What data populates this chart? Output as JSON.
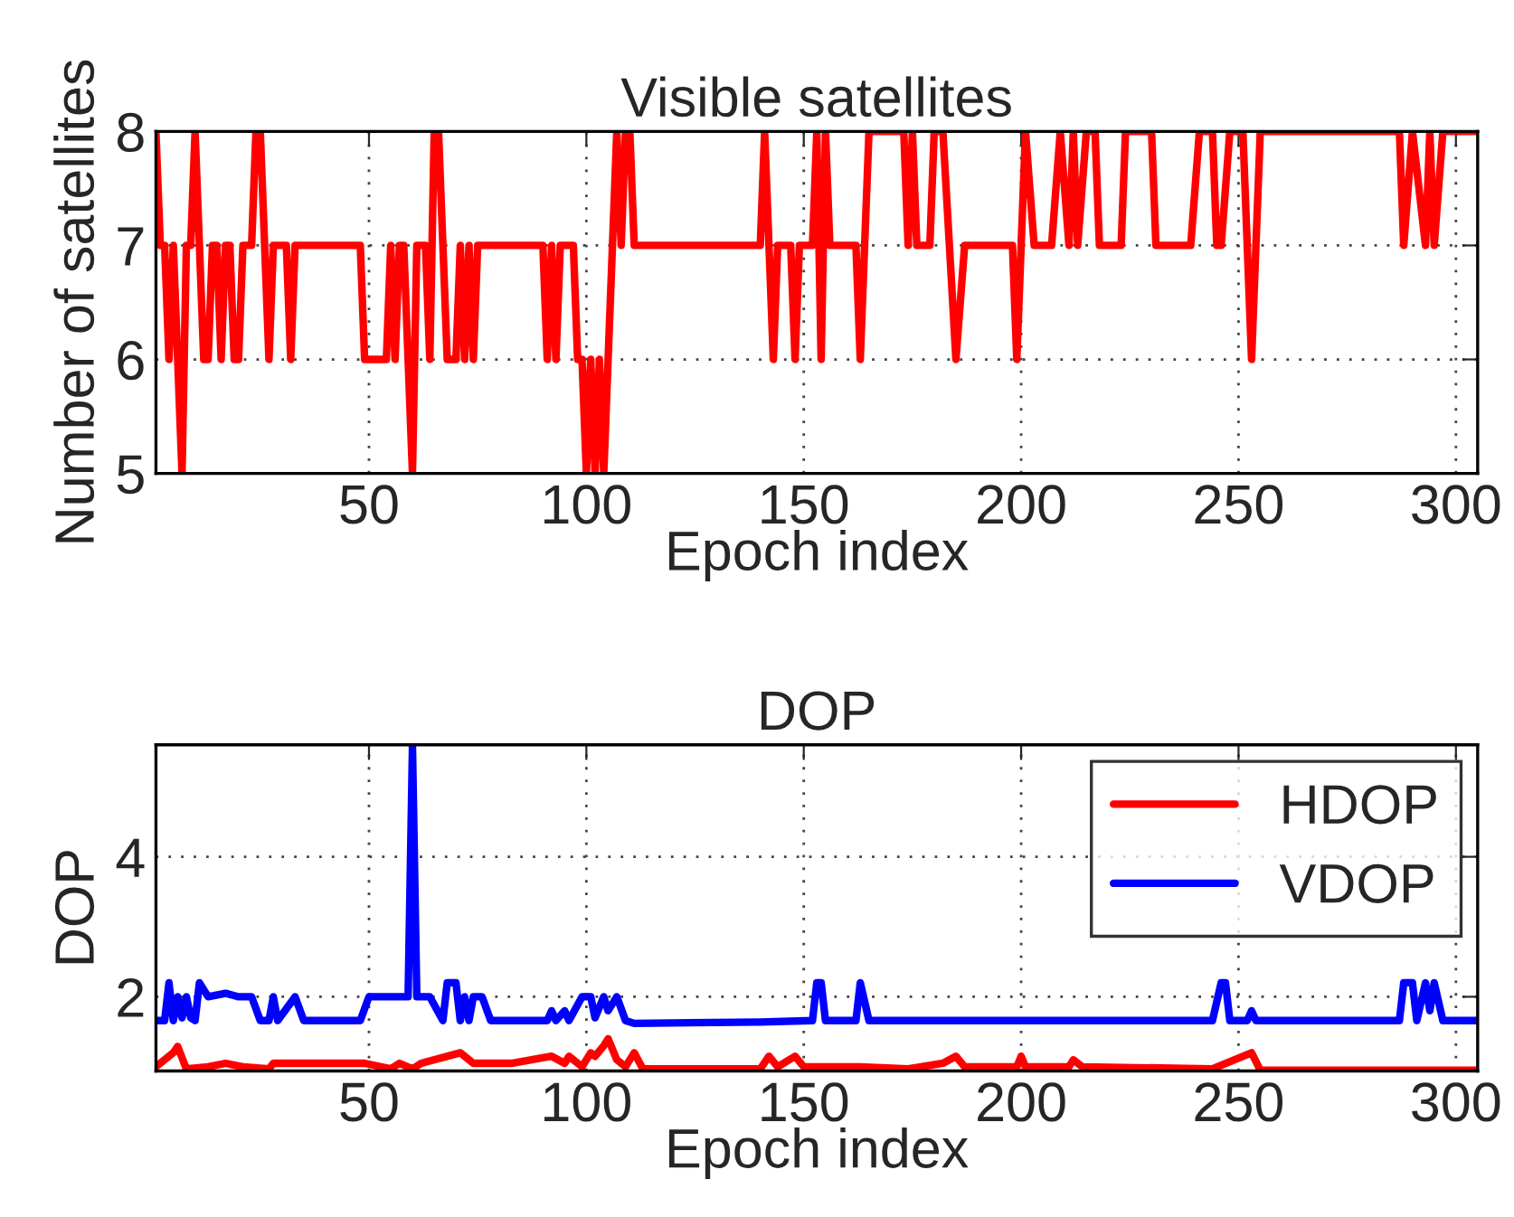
{
  "chart_data": [
    {
      "type": "line",
      "title": "Visible satellites",
      "xlabel": "Epoch index",
      "ylabel": "Number of satellites",
      "xlim": [
        1,
        305
      ],
      "xticks": [
        50,
        100,
        150,
        200,
        250,
        300
      ],
      "ylim": [
        5,
        8
      ],
      "yticks": [
        5,
        6,
        7,
        8
      ],
      "grid": true,
      "legend": false,
      "line_style": "solid",
      "series": [
        {
          "color": "#ff0000",
          "x": [
            1,
            2,
            3,
            4,
            5,
            7,
            8,
            9,
            10,
            11,
            12,
            13,
            14,
            15,
            16,
            17,
            18,
            19,
            20,
            21,
            22,
            23,
            24,
            25,
            26,
            27,
            28,
            30,
            31,
            32,
            33,
            48,
            49,
            54,
            55,
            56,
            57,
            58,
            60,
            61,
            63,
            64,
            65,
            66,
            67,
            68,
            70,
            71,
            72,
            73,
            74,
            75,
            90,
            91,
            92,
            93,
            94,
            97,
            98,
            99,
            100,
            101,
            102,
            103,
            104,
            105,
            106,
            107,
            108,
            109,
            110,
            111,
            140,
            141,
            142,
            143,
            144,
            147,
            148,
            149,
            152,
            153,
            154,
            155,
            156,
            162,
            163,
            165,
            173,
            174,
            175,
            176,
            179,
            180,
            182,
            185,
            187,
            198,
            199,
            201,
            203,
            207,
            209,
            211,
            212,
            213,
            215,
            217,
            218,
            223,
            224,
            230,
            231,
            239,
            241,
            244,
            245,
            246,
            248,
            251,
            253,
            255,
            287,
            288,
            290,
            293,
            294,
            295,
            297,
            305
          ],
          "values": [
            8,
            7,
            7,
            6,
            7,
            5,
            7,
            7,
            8,
            7,
            6,
            6,
            7,
            7,
            6,
            7,
            7,
            6,
            6,
            7,
            7,
            7,
            8,
            8,
            7,
            6,
            7,
            7,
            7,
            6,
            7,
            7,
            6,
            6,
            7,
            6,
            7,
            7,
            5,
            7,
            7,
            6,
            8,
            8,
            7,
            6,
            6,
            7,
            6,
            7,
            6,
            7,
            7,
            6,
            7,
            6,
            7,
            7,
            6,
            6,
            5,
            6,
            5,
            6,
            5,
            6,
            7,
            8,
            7,
            8,
            8,
            7,
            7,
            8,
            7,
            6,
            7,
            7,
            6,
            7,
            7,
            8,
            6,
            8,
            7,
            7,
            6,
            8,
            8,
            7,
            8,
            7,
            7,
            8,
            8,
            6,
            7,
            7,
            6,
            8,
            7,
            7,
            8,
            7,
            8,
            7,
            8,
            8,
            7,
            7,
            8,
            8,
            7,
            7,
            8,
            8,
            7,
            7,
            8,
            8,
            6,
            8,
            8,
            7,
            8,
            7,
            8,
            7,
            8,
            8
          ]
        }
      ]
    },
    {
      "type": "line",
      "title": "DOP",
      "xlabel": "Epoch index",
      "ylabel": "DOP",
      "xlim": [
        1,
        305
      ],
      "xticks": [
        50,
        100,
        150,
        200,
        250,
        300
      ],
      "ylim": [
        0.94,
        5.6
      ],
      "yticks": [
        2,
        4
      ],
      "grid": true,
      "legend": "top right",
      "line_style": "solid",
      "series": [
        {
          "name": "HDOP",
          "color": "#ff0000",
          "x": [
            1,
            5,
            6,
            8,
            13,
            17,
            21,
            27,
            28,
            35,
            49,
            55,
            57,
            60,
            62,
            71,
            74,
            83,
            92,
            95,
            96,
            99,
            101,
            102,
            104,
            105,
            107,
            109,
            111,
            113,
            140,
            142,
            144,
            148,
            150,
            163,
            174,
            182,
            185,
            187,
            199,
            200,
            201,
            211,
            212,
            214,
            244,
            253,
            255,
            305
          ],
          "values": [
            1.0,
            1.2,
            1.29,
            0.97,
            1.0,
            1.05,
            1.0,
            0.97,
            1.05,
            1.05,
            1.05,
            0.97,
            1.05,
            0.97,
            1.05,
            1.2,
            1.05,
            1.05,
            1.15,
            1.05,
            1.15,
            1.0,
            1.2,
            1.15,
            1.3,
            1.4,
            1.1,
            1.0,
            1.2,
            0.97,
            0.97,
            1.15,
            1.0,
            1.15,
            1.0,
            1.0,
            0.97,
            1.05,
            1.15,
            1.0,
            1.0,
            1.15,
            1.0,
            1.0,
            1.1,
            1.0,
            0.97,
            1.2,
            0.95,
            0.95
          ]
        },
        {
          "name": "VDOP",
          "color": "#0000ff",
          "x": [
            1,
            3,
            4,
            5,
            6,
            7,
            8,
            9,
            10,
            11,
            13,
            17,
            20,
            23,
            25,
            27,
            28,
            29,
            33,
            35,
            48,
            50,
            56,
            59,
            60,
            61,
            64,
            67,
            68,
            70,
            71,
            72,
            73,
            74,
            75,
            76,
            78,
            91,
            92,
            93,
            95,
            96,
            99,
            101,
            102,
            104,
            105,
            107,
            109,
            111,
            140,
            152,
            153,
            154,
            155,
            162,
            163,
            165,
            244,
            246,
            247,
            248,
            252,
            253,
            254,
            287,
            288,
            290,
            291,
            293,
            294,
            295,
            297,
            305
          ],
          "values": [
            1.66,
            1.66,
            2.2,
            1.66,
            2.0,
            1.7,
            2.0,
            1.7,
            1.66,
            2.2,
            2.0,
            2.05,
            2.0,
            2.0,
            1.66,
            1.66,
            2.0,
            1.66,
            2.0,
            1.66,
            1.66,
            2.0,
            2.0,
            2.0,
            5.58,
            2.0,
            2.0,
            1.66,
            2.2,
            2.2,
            1.66,
            2.0,
            1.66,
            2.0,
            2.0,
            2.0,
            1.66,
            1.66,
            1.8,
            1.66,
            1.8,
            1.66,
            2.0,
            2.0,
            1.7,
            2.0,
            1.8,
            2.0,
            1.66,
            1.62,
            1.64,
            1.66,
            2.2,
            2.2,
            1.66,
            1.66,
            2.2,
            1.66,
            1.66,
            2.2,
            2.2,
            1.66,
            1.66,
            1.8,
            1.66,
            1.66,
            2.2,
            2.2,
            1.66,
            2.2,
            1.8,
            2.2,
            1.66,
            1.66
          ]
        }
      ]
    }
  ]
}
